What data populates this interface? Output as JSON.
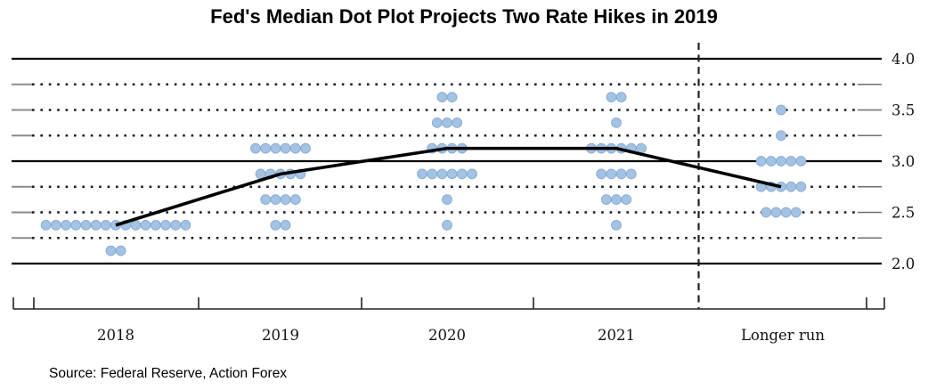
{
  "title": "Fed's Median Dot Plot Projects Two Rate Hikes in 2019",
  "source": "Source: Federal Reserve, Action Forex",
  "chart_data": {
    "type": "scatter",
    "subtype": "fomc-dot-plot",
    "x_categories": [
      "2018",
      "2019",
      "2020",
      "2021",
      "Longer run"
    ],
    "y_axis": {
      "tick_labels": [
        "4.0",
        "3.5",
        "3.0",
        "2.5",
        "2.0"
      ],
      "tick_values": [
        4.0,
        3.5,
        3.0,
        2.5,
        2.0
      ],
      "range": [
        2.0,
        4.0
      ],
      "gridlines": [
        {
          "rate": 4.0,
          "style": "solid"
        },
        {
          "rate": 3.75,
          "style": "dotted"
        },
        {
          "rate": 3.5,
          "style": "dotted"
        },
        {
          "rate": 3.25,
          "style": "dotted"
        },
        {
          "rate": 3.0,
          "style": "solid"
        },
        {
          "rate": 2.75,
          "style": "dotted"
        },
        {
          "rate": 2.5,
          "style": "dotted"
        },
        {
          "rate": 2.25,
          "style": "dotted"
        },
        {
          "rate": 2.0,
          "style": "solid"
        }
      ]
    },
    "dot_groups": [
      {
        "category": "2018",
        "rate": 2.375,
        "count": 15
      },
      {
        "category": "2018",
        "rate": 2.125,
        "count": 2
      },
      {
        "category": "2019",
        "rate": 3.125,
        "count": 6
      },
      {
        "category": "2019",
        "rate": 2.875,
        "count": 5
      },
      {
        "category": "2019",
        "rate": 2.625,
        "count": 4
      },
      {
        "category": "2019",
        "rate": 2.375,
        "count": 2
      },
      {
        "category": "2020",
        "rate": 3.625,
        "count": 2
      },
      {
        "category": "2020",
        "rate": 3.375,
        "count": 3
      },
      {
        "category": "2020",
        "rate": 3.125,
        "count": 4
      },
      {
        "category": "2020",
        "rate": 2.875,
        "count": 6
      },
      {
        "category": "2020",
        "rate": 2.625,
        "count": 1
      },
      {
        "category": "2020",
        "rate": 2.375,
        "count": 1
      },
      {
        "category": "2021",
        "rate": 3.625,
        "count": 2
      },
      {
        "category": "2021",
        "rate": 3.375,
        "count": 1
      },
      {
        "category": "2021",
        "rate": 3.125,
        "count": 6
      },
      {
        "category": "2021",
        "rate": 2.875,
        "count": 4
      },
      {
        "category": "2021",
        "rate": 2.625,
        "count": 3
      },
      {
        "category": "2021",
        "rate": 2.375,
        "count": 1
      },
      {
        "category": "Longer run",
        "rate": 3.5,
        "count": 1
      },
      {
        "category": "Longer run",
        "rate": 3.25,
        "count": 1
      },
      {
        "category": "Longer run",
        "rate": 3.0,
        "count": 5
      },
      {
        "category": "Longer run",
        "rate": 2.75,
        "count": 5
      },
      {
        "category": "Longer run",
        "rate": 2.5,
        "count": 4
      }
    ],
    "median_series": [
      {
        "category": "2018",
        "rate": 2.375
      },
      {
        "category": "2019",
        "rate": 2.875
      },
      {
        "category": "2020",
        "rate": 3.125
      },
      {
        "category": "2021",
        "rate": 3.125
      },
      {
        "category": "Longer run",
        "rate": 2.75
      }
    ],
    "separator_between": [
      "2021",
      "Longer run"
    ],
    "dot_color": "#a4c2e4",
    "dot_edge_color": "#88acd4",
    "line_color": "#000000",
    "legend": "none",
    "grid": "horizontal-only"
  }
}
